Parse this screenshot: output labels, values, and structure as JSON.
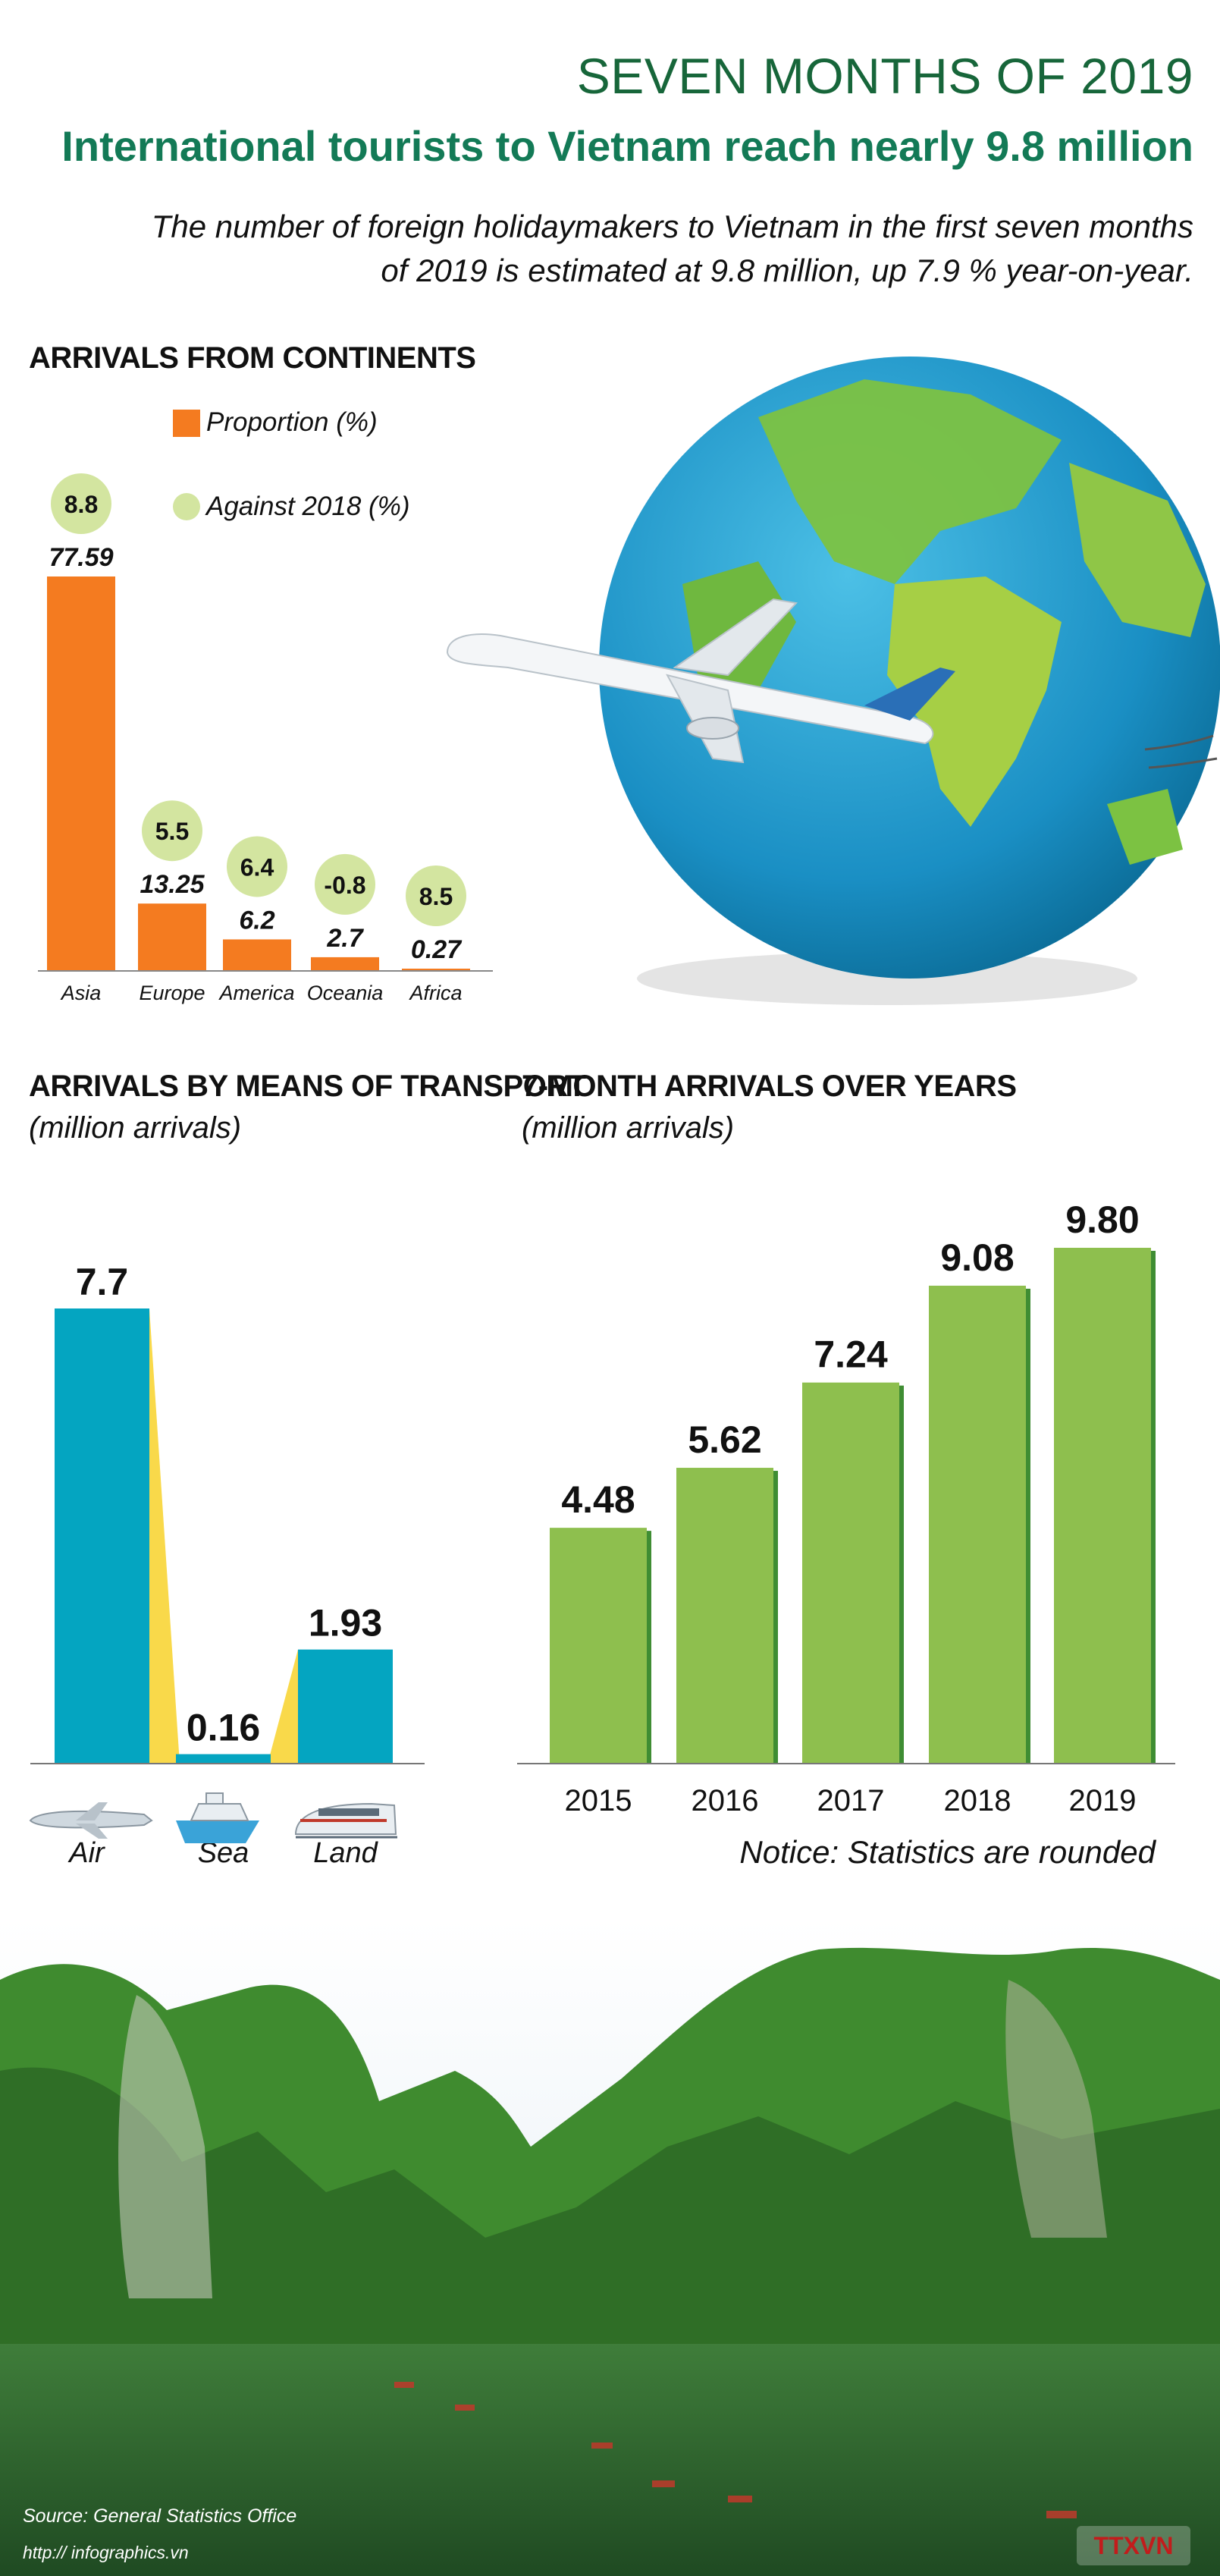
{
  "header": {
    "kicker": "SEVEN MONTHS OF 2019",
    "headline": "International tourists to Vietnam reach nearly 9.8 million",
    "intro": "The number of foreign holidaymakers to Vietnam in the first seven months of 2019 is estimated at 9.8 million, up 7.9 % year-on-year."
  },
  "colors": {
    "title_green": "#17663a",
    "headline_green": "#137a56",
    "orange": "#f47b20",
    "light_green": "#d3e5a0",
    "teal": "#04a5c1",
    "yellow": "#f9d94a",
    "bar_green": "#8ebf4e",
    "bar_green_edge": "#3f8d33"
  },
  "icons": [
    "globe-illustration",
    "airplane-illustration",
    "plane-icon",
    "ship-icon",
    "train-icon",
    "landscape-photo",
    "agency-logo"
  ],
  "chart_data": [
    {
      "type": "bar",
      "title": "ARRIVALS FROM CONTINENTS",
      "legend": [
        "Proportion (%)",
        "Against 2018 (%)"
      ],
      "categories": [
        "Asia",
        "Europe",
        "America",
        "Oceania",
        "Africa"
      ],
      "series": [
        {
          "name": "Proportion (%)",
          "values": [
            77.59,
            13.25,
            6.2,
            2.7,
            0.27
          ],
          "labels": [
            "77.59",
            "13.25",
            "6.2",
            "2.7",
            "0.27"
          ]
        },
        {
          "name": "Against 2018 (%)",
          "values": [
            8.8,
            5.5,
            6.4,
            -0.8,
            8.5
          ],
          "labels": [
            "8.8",
            "5.5",
            "6.4",
            "-0.8",
            "8.5"
          ]
        }
      ]
    },
    {
      "type": "bar",
      "title": "ARRIVALS BY MEANS OF TRANSPORT",
      "subtitle": "(million arrivals)",
      "categories": [
        "Air",
        "Sea",
        "Land"
      ],
      "values": [
        7.7,
        0.16,
        1.93
      ],
      "labels": [
        "7.7",
        "0.16",
        "1.93"
      ]
    },
    {
      "type": "bar",
      "title": "7-MONTH ARRIVALS OVER YEARS",
      "subtitle": "(million arrivals)",
      "categories": [
        "2015",
        "2016",
        "2017",
        "2018",
        "2019"
      ],
      "values": [
        4.48,
        5.62,
        7.24,
        9.08,
        9.8
      ],
      "labels": [
        "4.48",
        "5.62",
        "7.24",
        "9.08",
        "9.80"
      ]
    }
  ],
  "notice": "Notice: Statistics are rounded",
  "footer": {
    "source": "Source: General Statistics Office",
    "site": "http:// infographics.vn",
    "logo_text": "TTXVN"
  }
}
